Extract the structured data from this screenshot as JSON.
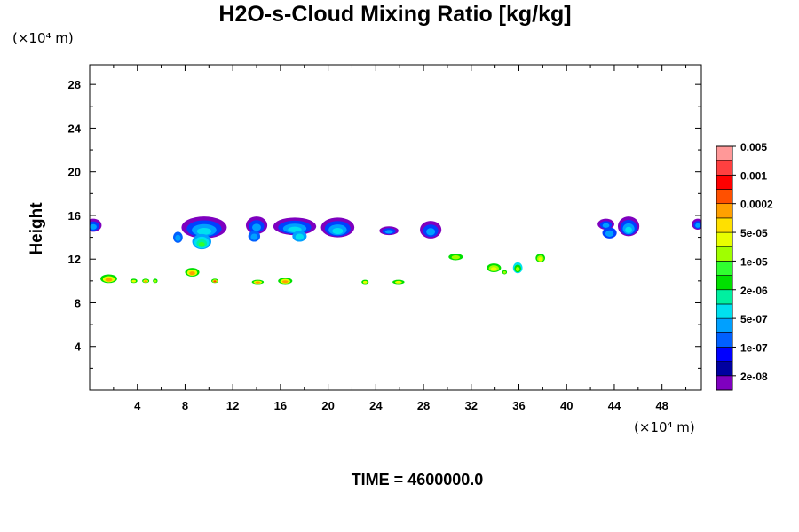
{
  "chart_data": {
    "type": "heatmap",
    "title": "H2O-s-Cloud Mixing Ratio [kg/kg]",
    "xlabel": "",
    "ylabel": "Height",
    "x_unit": "(×10⁴ m)",
    "y_unit": "(×10⁴ m)",
    "x_ticks": [
      "4",
      "8",
      "12",
      "16",
      "20",
      "24",
      "28",
      "32",
      "36",
      "40",
      "44",
      "48"
    ],
    "y_ticks": [
      "4",
      "8",
      "12",
      "16",
      "20",
      "24",
      "28"
    ],
    "xlim": [
      0,
      51.3
    ],
    "ylim": [
      0,
      29.8
    ],
    "footer": "TIME = 4600000.0",
    "colorbar": {
      "levels": [
        "2e-08",
        "1e-07",
        "5e-07",
        "2e-06",
        "1e-05",
        "5e-05",
        "0.0002",
        "0.001",
        "0.005"
      ],
      "colors": [
        "#7f00bf",
        "#0000a0",
        "#0000ff",
        "#0060ff",
        "#00a0ff",
        "#00e0f0",
        "#00f0a0",
        "#00e000",
        "#30ff30",
        "#a0ff00",
        "#e8ff00",
        "#ffe000",
        "#ffa000",
        "#ff5000",
        "#ff0000",
        "#ff4040",
        "#ff9898"
      ]
    },
    "cloud_patches": [
      {
        "x": 0.3,
        "y": 15.1,
        "rx": 0.7,
        "ry": 0.6,
        "levels": [
          "#7f00bf",
          "#0040ff",
          "#00a0ff"
        ]
      },
      {
        "x": 9.6,
        "y": 14.9,
        "rx": 1.9,
        "ry": 1.0,
        "levels": [
          "#7f00bf",
          "#0040ff",
          "#00a0ff",
          "#00e0f0"
        ]
      },
      {
        "x": 9.4,
        "y": 13.6,
        "rx": 0.8,
        "ry": 0.7,
        "levels": [
          "#00a0ff",
          "#00e0f0",
          "#00f0a0",
          "#30ff30"
        ]
      },
      {
        "x": 7.4,
        "y": 14.0,
        "rx": 0.4,
        "ry": 0.5,
        "levels": [
          "#0060ff",
          "#00a0ff"
        ]
      },
      {
        "x": 14.0,
        "y": 15.1,
        "rx": 0.9,
        "ry": 0.8,
        "levels": [
          "#7f00bf",
          "#0040ff",
          "#00a0ff"
        ]
      },
      {
        "x": 13.8,
        "y": 14.1,
        "rx": 0.5,
        "ry": 0.5,
        "levels": [
          "#0060ff",
          "#00a0ff"
        ]
      },
      {
        "x": 17.2,
        "y": 15.0,
        "rx": 1.8,
        "ry": 0.8,
        "levels": [
          "#7f00bf",
          "#0040ff",
          "#00a0ff",
          "#00e0f0"
        ]
      },
      {
        "x": 17.6,
        "y": 14.1,
        "rx": 0.6,
        "ry": 0.5,
        "levels": [
          "#00a0ff",
          "#00e0f0"
        ]
      },
      {
        "x": 20.8,
        "y": 14.9,
        "rx": 1.4,
        "ry": 0.9,
        "levels": [
          "#7f00bf",
          "#0040ff",
          "#00a0ff",
          "#00e0f0"
        ]
      },
      {
        "x": 25.1,
        "y": 14.6,
        "rx": 0.8,
        "ry": 0.4,
        "levels": [
          "#7f00bf",
          "#0040ff",
          "#00a0ff"
        ]
      },
      {
        "x": 28.6,
        "y": 14.7,
        "rx": 0.9,
        "ry": 0.8,
        "levels": [
          "#7f00bf",
          "#0040ff",
          "#00a0ff"
        ]
      },
      {
        "x": 43.3,
        "y": 15.2,
        "rx": 0.7,
        "ry": 0.5,
        "levels": [
          "#7f00bf",
          "#0040ff",
          "#00a0ff"
        ]
      },
      {
        "x": 43.6,
        "y": 14.4,
        "rx": 0.6,
        "ry": 0.5,
        "levels": [
          "#0040ff",
          "#00a0ff"
        ]
      },
      {
        "x": 45.2,
        "y": 15.0,
        "rx": 0.9,
        "ry": 0.9,
        "levels": [
          "#7f00bf",
          "#0040ff",
          "#00a0ff",
          "#00e0f0"
        ]
      },
      {
        "x": 51.0,
        "y": 15.2,
        "rx": 0.5,
        "ry": 0.5,
        "levels": [
          "#7f00bf",
          "#0040ff",
          "#00a0ff"
        ]
      },
      {
        "x": 1.6,
        "y": 10.2,
        "rx": 0.7,
        "ry": 0.4,
        "levels": [
          "#00e000",
          "#e8ff00",
          "#ffa000"
        ]
      },
      {
        "x": 3.7,
        "y": 10.0,
        "rx": 0.3,
        "ry": 0.2,
        "levels": [
          "#00e000",
          "#e8ff00"
        ]
      },
      {
        "x": 4.7,
        "y": 10.0,
        "rx": 0.3,
        "ry": 0.2,
        "levels": [
          "#00e000",
          "#e8ff00",
          "#ffa000"
        ]
      },
      {
        "x": 5.5,
        "y": 10.0,
        "rx": 0.2,
        "ry": 0.2,
        "levels": [
          "#00e000",
          "#a0ff00"
        ]
      },
      {
        "x": 8.6,
        "y": 10.8,
        "rx": 0.6,
        "ry": 0.4,
        "levels": [
          "#00e000",
          "#e8ff00",
          "#ffa000"
        ]
      },
      {
        "x": 10.5,
        "y": 10.0,
        "rx": 0.3,
        "ry": 0.2,
        "levels": [
          "#00e000",
          "#e8ff00",
          "#ff5000"
        ]
      },
      {
        "x": 14.1,
        "y": 9.9,
        "rx": 0.5,
        "ry": 0.2,
        "levels": [
          "#00e000",
          "#e8ff00",
          "#ffa000"
        ]
      },
      {
        "x": 16.4,
        "y": 10.0,
        "rx": 0.6,
        "ry": 0.3,
        "levels": [
          "#00e000",
          "#e8ff00",
          "#ffa000"
        ]
      },
      {
        "x": 23.1,
        "y": 9.9,
        "rx": 0.3,
        "ry": 0.2,
        "levels": [
          "#00e000",
          "#e8ff00"
        ]
      },
      {
        "x": 25.9,
        "y": 9.9,
        "rx": 0.5,
        "ry": 0.2,
        "levels": [
          "#00e000",
          "#e8ff00"
        ]
      },
      {
        "x": 30.7,
        "y": 12.2,
        "rx": 0.6,
        "ry": 0.3,
        "levels": [
          "#00e000",
          "#a0ff00"
        ]
      },
      {
        "x": 33.9,
        "y": 11.2,
        "rx": 0.6,
        "ry": 0.4,
        "levels": [
          "#00e000",
          "#a0ff00",
          "#e8ff00"
        ]
      },
      {
        "x": 35.9,
        "y": 11.2,
        "rx": 0.4,
        "ry": 0.5,
        "levels": [
          "#00e0f0",
          "#00e000",
          "#a0ff00"
        ]
      },
      {
        "x": 37.8,
        "y": 12.1,
        "rx": 0.4,
        "ry": 0.4,
        "levels": [
          "#00e000",
          "#a0ff00",
          "#e8ff00"
        ]
      },
      {
        "x": 34.8,
        "y": 10.8,
        "rx": 0.2,
        "ry": 0.2,
        "levels": [
          "#00e000",
          "#a0ff00"
        ]
      }
    ]
  }
}
